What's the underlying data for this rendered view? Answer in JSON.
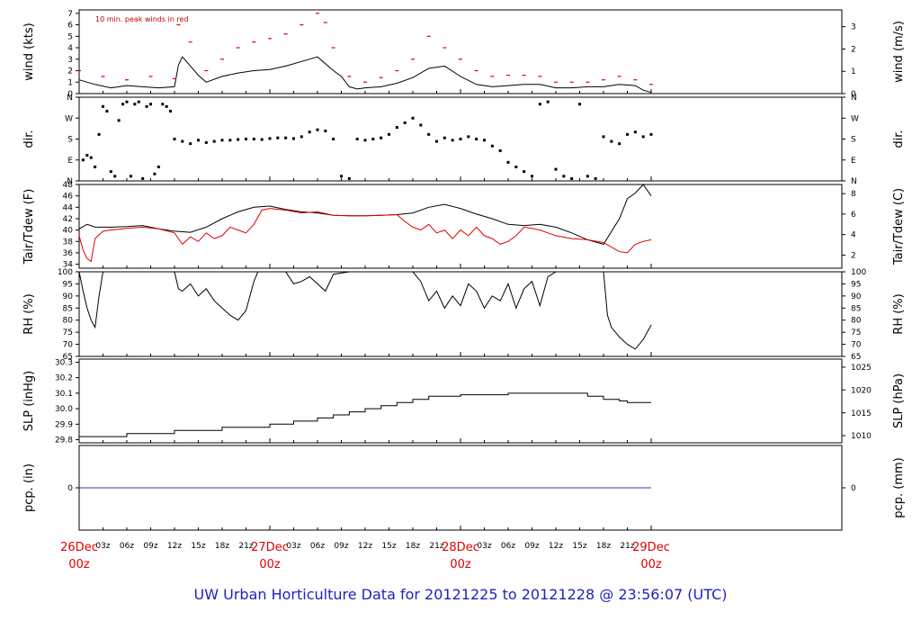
{
  "footer": "UW Urban Horticulture Data for 20121225  to  20121228 @ 23:56:07  (UTC)",
  "colors": {
    "frame": "#000000",
    "peak": "#e00000",
    "dew": "#e00000",
    "dates": "#e00000",
    "precip": "#3333cc",
    "footer": "#1f1fbf"
  },
  "time_axis": {
    "hours": 96,
    "date_labels": [
      {
        "t": 0,
        "line1": "26Dec",
        "line2": "00z"
      },
      {
        "t": 24,
        "line1": "27Dec",
        "line2": "00z"
      },
      {
        "t": 48,
        "line1": "28Dec",
        "line2": "00z"
      },
      {
        "t": 72,
        "line1": "29Dec",
        "line2": "00z"
      }
    ],
    "hour_labels": [
      "03z",
      "06z",
      "09z",
      "12z",
      "15z",
      "18z",
      "21z",
      "03z",
      "06z",
      "09z",
      "12z",
      "15z",
      "18z",
      "21z",
      "03z",
      "06z",
      "09z",
      "12z",
      "15z",
      "18z",
      "21z"
    ],
    "hour_positions": [
      3,
      6,
      9,
      12,
      15,
      18,
      21,
      27,
      30,
      33,
      36,
      39,
      42,
      45,
      51,
      54,
      57,
      60,
      63,
      66,
      69
    ]
  },
  "chart_data": [
    {
      "type": "line",
      "ylabel": "wind (kts)",
      "ylabel_right": "wind (m/s)",
      "annotation": "10 min. peak winds in red",
      "ylim": [
        0,
        7.3
      ],
      "yticks": [
        "0",
        "1",
        "2",
        "3",
        "4",
        "5",
        "6",
        "7"
      ],
      "yticks_right": [
        "0",
        "1",
        "2",
        "3"
      ],
      "yticks_right_values": [
        0,
        1.944,
        3.888,
        5.832
      ],
      "series": [
        {
          "role": "speed",
          "color": "#000000",
          "x": [
            0,
            2,
            4,
            6,
            8,
            10,
            12,
            12.5,
            13,
            14,
            15,
            16,
            18,
            20,
            22,
            24,
            26,
            28,
            30,
            32,
            33,
            34,
            35,
            36,
            38,
            40,
            42,
            44,
            46,
            48,
            50,
            52,
            54,
            56,
            58,
            60,
            62,
            64,
            66,
            68,
            70,
            71,
            72
          ],
          "y": [
            1.2,
            0.8,
            0.5,
            0.7,
            0.6,
            0.5,
            0.6,
            2.5,
            3.2,
            2.4,
            1.6,
            1.0,
            1.5,
            1.8,
            2.0,
            2.1,
            2.4,
            2.8,
            3.2,
            2.0,
            1.5,
            0.6,
            0.4,
            0.5,
            0.6,
            0.9,
            1.4,
            2.2,
            2.4,
            1.5,
            0.8,
            0.6,
            0.7,
            0.8,
            0.8,
            0.5,
            0.5,
            0.6,
            0.6,
            0.8,
            0.7,
            0.3,
            0.1
          ]
        },
        {
          "role": "peak",
          "color": "#e00000",
          "x": [
            0,
            3,
            6,
            9,
            12,
            12.5,
            14,
            16,
            18,
            20,
            22,
            24,
            26,
            28,
            30,
            31,
            32,
            34,
            36,
            38,
            40,
            42,
            44,
            46,
            48,
            50,
            52,
            54,
            56,
            58,
            60,
            62,
            64,
            66,
            68,
            70,
            72
          ],
          "y": [
            2.0,
            1.5,
            1.2,
            1.5,
            1.3,
            6.0,
            4.5,
            2.0,
            3.0,
            4.0,
            4.5,
            4.8,
            5.2,
            6.0,
            7.0,
            6.2,
            4.0,
            1.5,
            1.0,
            1.4,
            2.0,
            3.0,
            5.0,
            4.0,
            3.0,
            2.0,
            1.5,
            1.6,
            1.6,
            1.5,
            1.0,
            1.0,
            1.0,
            1.2,
            1.5,
            1.2,
            0.8
          ]
        }
      ]
    },
    {
      "type": "scatter",
      "ylabel": "dir.",
      "ylabel_right": "dir.",
      "ylim": [
        0,
        360
      ],
      "yticks": [
        "N",
        "E",
        "S",
        "W",
        "N"
      ],
      "yticks_right": [
        "N",
        "E",
        "S",
        "W",
        "N"
      ],
      "series": [
        {
          "color": "#000000",
          "x": [
            0.5,
            1,
            1.5,
            2,
            2.5,
            3,
            3.5,
            4,
            4.5,
            5,
            5.5,
            6,
            6.5,
            7,
            7.5,
            8,
            8.5,
            9,
            9.5,
            10,
            10.5,
            11,
            11.5,
            12,
            13,
            14,
            15,
            16,
            17,
            18,
            19,
            20,
            21,
            22,
            23,
            24,
            25,
            26,
            27,
            28,
            29,
            30,
            31,
            32,
            33,
            34,
            35,
            36,
            37,
            38,
            39,
            40,
            41,
            42,
            43,
            44,
            45,
            46,
            47,
            48,
            49,
            50,
            51,
            52,
            53,
            54,
            55,
            56,
            57,
            58,
            59,
            60,
            61,
            62,
            63,
            64,
            65,
            66,
            67,
            68,
            69,
            70,
            71,
            72
          ],
          "y": [
            90,
            110,
            100,
            60,
            200,
            320,
            300,
            40,
            20,
            260,
            330,
            340,
            20,
            330,
            340,
            10,
            320,
            330,
            30,
            60,
            330,
            320,
            300,
            180,
            170,
            160,
            175,
            165,
            170,
            175,
            175,
            178,
            180,
            180,
            178,
            182,
            185,
            185,
            182,
            190,
            210,
            220,
            215,
            180,
            20,
            10,
            180,
            175,
            180,
            185,
            200,
            230,
            250,
            270,
            240,
            200,
            170,
            185,
            175,
            180,
            190,
            180,
            175,
            150,
            130,
            80,
            60,
            40,
            20,
            330,
            340,
            50,
            20,
            10,
            330,
            20,
            10,
            190,
            170,
            160,
            200,
            210,
            190,
            200
          ]
        }
      ]
    },
    {
      "type": "line",
      "ylabel": "Tair/Tdew (F)",
      "ylabel_right": "Tair/Tdew (C)",
      "ylim": [
        33.3,
        48
      ],
      "yticks": [
        "34",
        "36",
        "38",
        "40",
        "42",
        "44",
        "46",
        "48"
      ],
      "yticks_right": [
        "2",
        "4",
        "6",
        "8"
      ],
      "yticks_right_values": [
        35.6,
        39.2,
        42.8,
        46.4
      ],
      "series": [
        {
          "role": "tair",
          "color": "#000000",
          "x": [
            0,
            1,
            2,
            4,
            6,
            8,
            10,
            12,
            14,
            16,
            18,
            20,
            22,
            24,
            26,
            28,
            30,
            32,
            34,
            36,
            38,
            40,
            42,
            44,
            46,
            48,
            50,
            52,
            54,
            56,
            58,
            60,
            62,
            64,
            66,
            68,
            69,
            70,
            71,
            72
          ],
          "y": [
            40.2,
            41.0,
            40.5,
            40.5,
            40.6,
            40.8,
            40.2,
            39.8,
            39.6,
            40.5,
            42.0,
            43.2,
            44.0,
            44.2,
            43.6,
            43.2,
            43.0,
            42.6,
            42.5,
            42.5,
            42.6,
            42.7,
            43.0,
            44.0,
            44.5,
            43.8,
            42.8,
            42.0,
            41.0,
            40.8,
            41.0,
            40.5,
            39.5,
            38.3,
            37.5,
            42.0,
            45.5,
            46.5,
            48.0,
            46.0
          ]
        },
        {
          "role": "tdew",
          "color": "#e00000",
          "x": [
            0,
            0.5,
            1,
            1.5,
            2,
            3,
            4,
            6,
            8,
            10,
            12,
            12.5,
            13,
            14,
            15,
            16,
            17,
            18,
            19,
            20,
            21,
            22,
            23,
            24,
            26,
            28,
            30,
            32,
            34,
            36,
            38,
            40,
            41,
            42,
            43,
            44,
            45,
            46,
            47,
            48,
            49,
            50,
            51,
            52,
            53,
            54,
            55,
            56,
            57,
            58,
            59,
            60,
            62,
            64,
            66,
            68,
            69,
            70,
            71,
            72
          ],
          "y": [
            39.0,
            36.5,
            35.0,
            34.5,
            38.5,
            39.8,
            40.0,
            40.3,
            40.5,
            40.2,
            39.5,
            38.5,
            37.5,
            38.8,
            38.0,
            39.5,
            38.5,
            39.0,
            40.5,
            40.0,
            39.5,
            41.0,
            43.5,
            43.8,
            43.5,
            43.0,
            43.2,
            42.6,
            42.5,
            42.5,
            42.6,
            42.7,
            41.5,
            40.5,
            40.0,
            41.0,
            39.5,
            40.0,
            38.5,
            40.0,
            39.0,
            40.5,
            39.0,
            38.5,
            37.5,
            38.0,
            39.0,
            40.5,
            40.3,
            40.0,
            39.5,
            39.0,
            38.5,
            38.3,
            37.8,
            36.2,
            36.0,
            37.5,
            38.0,
            38.3
          ]
        }
      ]
    },
    {
      "type": "line",
      "ylabel": "RH (%)",
      "ylabel_right": "RH (%)",
      "ylim": [
        65,
        100
      ],
      "yticks": [
        "65",
        "70",
        "75",
        "80",
        "85",
        "90",
        "95",
        "100"
      ],
      "yticks_right": [
        "65",
        "70",
        "75",
        "80",
        "85",
        "90",
        "95",
        "100"
      ],
      "series": [
        {
          "color": "#000000",
          "x": [
            0,
            0.5,
            1,
            1.5,
            2,
            2.5,
            3,
            4,
            6,
            8,
            10,
            12,
            12.5,
            13,
            14,
            15,
            16,
            17,
            18,
            19,
            20,
            21,
            22,
            22.5,
            23,
            24,
            26,
            27,
            28,
            29,
            30,
            31,
            32,
            34,
            36,
            38,
            40,
            42,
            43,
            44,
            45,
            46,
            47,
            48,
            49,
            50,
            51,
            52,
            53,
            54,
            55,
            56,
            57,
            58,
            59,
            60,
            62,
            64,
            66,
            66.5,
            67,
            68,
            69,
            70,
            71,
            72
          ],
          "y": [
            100,
            92,
            85,
            80,
            77,
            90,
            100,
            100,
            100,
            100,
            100,
            100,
            93,
            92,
            95,
            90,
            93,
            88,
            85,
            82,
            80,
            84,
            96,
            100,
            100,
            100,
            100,
            95,
            96,
            98,
            95,
            92,
            99,
            100,
            100,
            100,
            100,
            100,
            96,
            88,
            92,
            85,
            90,
            86,
            95,
            92,
            85,
            90,
            88,
            95,
            85,
            93,
            96,
            86,
            98,
            100,
            100,
            100,
            100,
            82,
            77,
            73,
            70,
            68,
            72,
            78
          ]
        }
      ]
    },
    {
      "type": "line",
      "ylabel": "SLP (inHg)",
      "ylabel_right": "SLP (hPa)",
      "ylim": [
        29.78,
        30.32
      ],
      "yticks": [
        "29.8",
        "29.9",
        "30.0",
        "30.1",
        "30.2",
        "30.3"
      ],
      "yticks_right": [
        "1010",
        "1015",
        "1020",
        "1025"
      ],
      "yticks_right_values": [
        29.826,
        29.973,
        30.121,
        30.268
      ],
      "series": [
        {
          "color": "#000000",
          "step": true,
          "x": [
            0,
            6,
            12,
            18,
            24,
            27,
            30,
            32,
            34,
            36,
            38,
            40,
            42,
            44,
            48,
            54,
            60,
            64,
            66,
            68,
            69,
            72
          ],
          "y": [
            29.82,
            29.84,
            29.86,
            29.88,
            29.9,
            29.92,
            29.94,
            29.96,
            29.98,
            30.0,
            30.02,
            30.04,
            30.06,
            30.08,
            30.09,
            30.1,
            30.1,
            30.08,
            30.06,
            30.05,
            30.04,
            30.04
          ]
        }
      ]
    },
    {
      "type": "line",
      "ylabel": "pcp. (in)",
      "ylabel_right": "pcp. (mm)",
      "ylim": [
        -1,
        1
      ],
      "yticks": [
        "0"
      ],
      "yticks_right": [
        "0"
      ],
      "series": [
        {
          "color": "#3333cc",
          "x": [
            0,
            72
          ],
          "y": [
            0,
            0
          ]
        }
      ]
    }
  ]
}
